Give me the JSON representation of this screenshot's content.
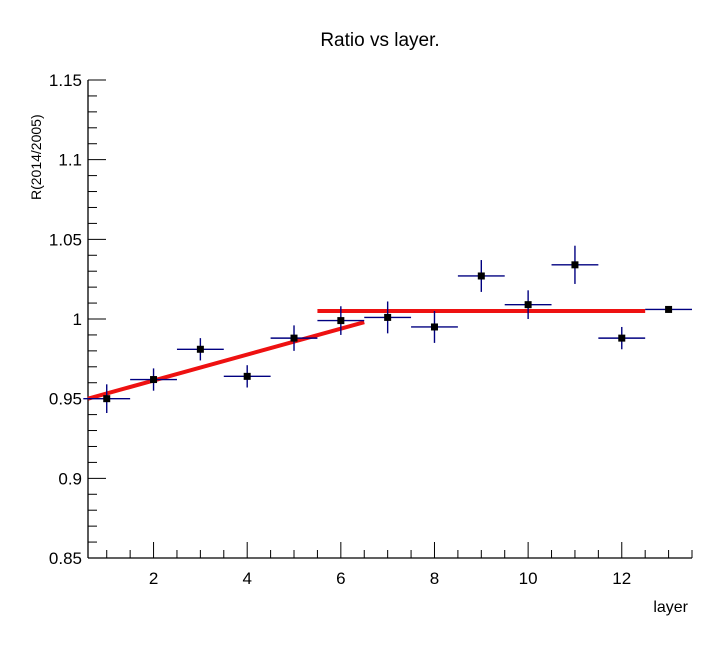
{
  "chart_data": {
    "type": "scatter",
    "title": "Ratio vs layer.",
    "xlabel": "layer",
    "ylabel": "R(2014/2005)",
    "xlim": [
      0.6,
      13.5
    ],
    "ylim": [
      0.85,
      1.15
    ],
    "x_ticks": [
      2,
      4,
      6,
      8,
      10,
      12
    ],
    "x_tick_labels": [
      "2",
      "4",
      "6",
      "8",
      "10",
      "12"
    ],
    "y_ticks": [
      0.85,
      0.9,
      0.95,
      1.0,
      1.05,
      1.1,
      1.15
    ],
    "y_tick_labels": [
      "0.85",
      "0.9",
      "0.95",
      "1",
      "1.05",
      "1.1",
      "1.15"
    ],
    "grid": false,
    "points": [
      {
        "x": 1,
        "y": 0.95,
        "x_err": 0.5,
        "y_err": 0.009
      },
      {
        "x": 2,
        "y": 0.962,
        "x_err": 0.5,
        "y_err": 0.007
      },
      {
        "x": 3,
        "y": 0.981,
        "x_err": 0.5,
        "y_err": 0.007
      },
      {
        "x": 4,
        "y": 0.964,
        "x_err": 0.5,
        "y_err": 0.007
      },
      {
        "x": 5,
        "y": 0.988,
        "x_err": 0.5,
        "y_err": 0.008
      },
      {
        "x": 6,
        "y": 0.999,
        "x_err": 0.5,
        "y_err": 0.009
      },
      {
        "x": 7,
        "y": 1.001,
        "x_err": 0.5,
        "y_err": 0.01
      },
      {
        "x": 8,
        "y": 0.995,
        "x_err": 0.5,
        "y_err": 0.01
      },
      {
        "x": 9,
        "y": 1.027,
        "x_err": 0.5,
        "y_err": 0.01
      },
      {
        "x": 10,
        "y": 1.009,
        "x_err": 0.5,
        "y_err": 0.009
      },
      {
        "x": 11,
        "y": 1.034,
        "x_err": 0.5,
        "y_err": 0.012
      },
      {
        "x": 12,
        "y": 0.988,
        "x_err": 0.5,
        "y_err": 0.007
      },
      {
        "x": 13,
        "y": 1.006,
        "x_err": 0.5,
        "y_err": 0.002
      }
    ],
    "fits": [
      {
        "x": [
          0.6,
          6.5
        ],
        "y": [
          0.95,
          0.998
        ]
      },
      {
        "x": [
          5.5,
          12.5
        ],
        "y": [
          1.005,
          1.005
        ]
      }
    ],
    "colors": {
      "marker": "#000000",
      "error_bar": "#000080",
      "fit_line": "#ee1111",
      "axis": "#000000"
    }
  }
}
